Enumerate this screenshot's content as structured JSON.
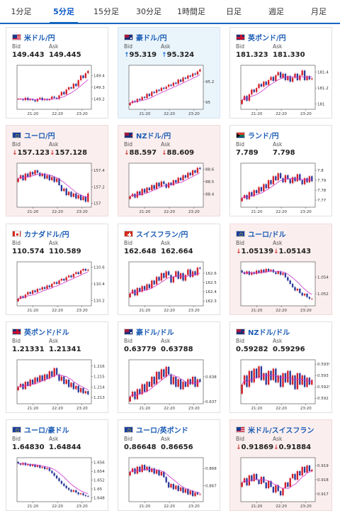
{
  "tabs": [
    "1分足",
    "5分足",
    "15分足",
    "30分足",
    "1時間足",
    "日足",
    "週足",
    "月足"
  ],
  "active_tab": 1,
  "labels": {
    "bid": "Bid",
    "ask": "Ask"
  },
  "colors": {
    "up_candle": "#d4202a",
    "down_candle": "#2b3a9a",
    "ma_line": "#cc33cc",
    "axis": "#333333"
  },
  "cards": [
    {
      "pair": "米ドル/円",
      "bid": "149.443",
      "ask": "149.445",
      "trend": "none",
      "flag": "us-jp",
      "chart_data": {
        "type": "candlestick",
        "x_ticks": [
          "21:20",
          "22:20",
          "23:20"
        ],
        "y_ticks": [
          "149.4",
          "149.3",
          "149.2"
        ],
        "y_range": [
          149.13,
          149.47
        ],
        "closes": [
          149.2,
          149.2,
          149.19,
          149.21,
          149.19,
          149.2,
          149.19,
          149.18,
          149.2,
          149.21,
          149.19,
          149.2,
          149.19,
          149.2,
          149.22,
          149.21,
          149.2,
          149.23,
          149.26,
          149.24,
          149.28,
          149.3,
          149.29,
          149.33,
          149.31,
          149.36,
          149.4,
          149.38,
          149.42,
          149.44
        ]
      }
    },
    {
      "pair": "豪ドル/円",
      "bid": "95.319",
      "ask": "95.324",
      "trend": "up",
      "flag": "au-jp",
      "chart_data": {
        "type": "candlestick",
        "x_ticks": [
          "21:20",
          "22:20",
          "23:20"
        ],
        "y_ticks": [
          "95.2",
          "95"
        ],
        "y_range": [
          94.95,
          95.34
        ],
        "closes": [
          94.99,
          95.01,
          95.0,
          95.03,
          95.02,
          95.05,
          95.04,
          95.08,
          95.06,
          95.1,
          95.09,
          95.12,
          95.11,
          95.14,
          95.13,
          95.15,
          95.17,
          95.16,
          95.19,
          95.18,
          95.22,
          95.2,
          95.24,
          95.23,
          95.26,
          95.25,
          95.28,
          95.27,
          95.3,
          95.32
        ]
      }
    },
    {
      "pair": "英ポンド/円",
      "bid": "181.323",
      "ask": "181.330",
      "trend": "none",
      "flag": "gb-jp",
      "chart_data": {
        "type": "candlestick",
        "x_ticks": [
          "21:20",
          "22:20",
          "23:20"
        ],
        "y_ticks": [
          "181.4",
          "181.2",
          "181"
        ],
        "y_range": [
          180.96,
          181.46
        ],
        "closes": [
          181.05,
          181.1,
          181.04,
          181.12,
          181.18,
          181.15,
          181.2,
          181.25,
          181.22,
          181.28,
          181.24,
          181.3,
          181.34,
          181.29,
          181.36,
          181.4,
          181.33,
          181.38,
          181.3,
          181.35,
          181.28,
          181.33,
          181.38,
          181.3,
          181.36,
          181.42,
          181.3,
          181.35,
          181.31,
          181.32
        ]
      }
    },
    {
      "pair": "ユーロ/円",
      "bid": "157.123",
      "ask": "157.128",
      "trend": "down",
      "flag": "eu-jp",
      "chart_data": {
        "type": "candlestick",
        "x_ticks": [
          "21:20",
          "22:20",
          "23:20"
        ],
        "y_ticks": [
          "157.4",
          "157.2",
          "157"
        ],
        "y_range": [
          156.98,
          157.46
        ],
        "closes": [
          157.3,
          157.34,
          157.28,
          157.36,
          157.32,
          157.38,
          157.35,
          157.4,
          157.37,
          157.33,
          157.36,
          157.3,
          157.34,
          157.28,
          157.32,
          157.26,
          157.3,
          157.22,
          157.15,
          157.18,
          157.1,
          157.14,
          157.08,
          157.12,
          157.06,
          157.1,
          157.04,
          157.08,
          157.02,
          157.12
        ]
      }
    },
    {
      "pair": "NZドル/円",
      "bid": "88.597",
      "ask": "88.609",
      "trend": "down",
      "flag": "nz-jp",
      "chart_data": {
        "type": "candlestick",
        "x_ticks": [
          "21:20",
          "22:20",
          "23:20"
        ],
        "y_ticks": [
          "88.6",
          "88.5",
          "88.4"
        ],
        "y_range": [
          88.31,
          88.63
        ],
        "closes": [
          88.38,
          88.4,
          88.37,
          88.42,
          88.39,
          88.44,
          88.41,
          88.45,
          88.43,
          88.47,
          88.44,
          88.49,
          88.46,
          88.5,
          88.48,
          88.45,
          88.49,
          88.47,
          88.51,
          88.49,
          88.53,
          88.51,
          88.55,
          88.53,
          88.57,
          88.55,
          88.59,
          88.57,
          88.61,
          88.6
        ]
      }
    },
    {
      "pair": "ランド/円",
      "bid": "7.789",
      "ask": "7.798",
      "trend": "none",
      "flag": "za-jp",
      "chart_data": {
        "type": "candlestick",
        "x_ticks": [
          "21:20",
          "22:20",
          "23:20"
        ],
        "y_ticks": [
          "7.8",
          "7.79",
          "7.78",
          "7.77"
        ],
        "y_range": [
          7.765,
          7.805
        ],
        "closes": [
          7.772,
          7.775,
          7.771,
          7.778,
          7.774,
          7.78,
          7.777,
          7.783,
          7.779,
          7.786,
          7.782,
          7.79,
          7.786,
          7.794,
          7.79,
          7.797,
          7.792,
          7.788,
          7.795,
          7.791,
          7.787,
          7.793,
          7.789,
          7.796,
          7.79,
          7.786,
          7.792,
          7.788,
          7.794,
          7.789
        ]
      }
    },
    {
      "pair": "カナダドル/円",
      "bid": "110.574",
      "ask": "110.589",
      "trend": "none",
      "flag": "ca-jp",
      "chart_data": {
        "type": "candlestick",
        "x_ticks": [
          "21:20",
          "22:20",
          "23:20"
        ],
        "y_ticks": [
          "110.6",
          "110.4",
          "110.2"
        ],
        "y_range": [
          110.16,
          110.64
        ],
        "closes": [
          110.22,
          110.25,
          110.23,
          110.27,
          110.3,
          110.28,
          110.32,
          110.3,
          110.34,
          110.33,
          110.36,
          110.34,
          110.38,
          110.36,
          110.4,
          110.42,
          110.4,
          110.44,
          110.46,
          110.44,
          110.48,
          110.5,
          110.48,
          110.52,
          110.54,
          110.52,
          110.56,
          110.58,
          110.56,
          110.57
        ]
      }
    },
    {
      "pair": "スイスフラン/円",
      "bid": "162.648",
      "ask": "162.664",
      "trend": "none",
      "flag": "ch-jp",
      "chart_data": {
        "type": "candlestick",
        "x_ticks": [
          "21:20",
          "22:20",
          "23:20"
        ],
        "y_ticks": [
          "162.6",
          "162.5",
          "162.4",
          "162.3"
        ],
        "y_range": [
          162.27,
          162.7
        ],
        "closes": [
          162.38,
          162.42,
          162.36,
          162.44,
          162.4,
          162.46,
          162.42,
          162.48,
          162.44,
          162.52,
          162.48,
          162.56,
          162.52,
          162.6,
          162.55,
          162.62,
          162.58,
          162.5,
          162.56,
          162.62,
          162.54,
          162.6,
          162.52,
          162.58,
          162.64,
          162.56,
          162.62,
          162.58,
          162.66,
          162.65
        ]
      }
    },
    {
      "pair": "ユーロ/ドル",
      "bid": "1.05139",
      "ask": "1.05143",
      "trend": "down",
      "flag": "eu-us",
      "chart_data": {
        "type": "candlestick",
        "x_ticks": [
          "21:20",
          "22:20",
          "23:20"
        ],
        "y_ticks": [
          "1.054",
          "1.052"
        ],
        "y_range": [
          1.0508,
          1.0556
        ],
        "closes": [
          1.0546,
          1.0544,
          1.0547,
          1.0543,
          1.0546,
          1.0544,
          1.0548,
          1.0545,
          1.0549,
          1.0546,
          1.055,
          1.0547,
          1.0549,
          1.0546,
          1.0544,
          1.0547,
          1.0543,
          1.0545,
          1.054,
          1.0536,
          1.0532,
          1.0528,
          1.0524,
          1.0526,
          1.0521,
          1.0518,
          1.052,
          1.0516,
          1.0514,
          1.0514
        ]
      }
    },
    {
      "pair": "英ポンド/ドル",
      "bid": "1.21331",
      "ask": "1.21341",
      "trend": "none",
      "flag": "gb-us",
      "chart_data": {
        "type": "candlestick",
        "x_ticks": [
          "21:20",
          "22:20",
          "23:20"
        ],
        "y_ticks": [
          "1.216",
          "1.215",
          "1.214",
          "1.213"
        ],
        "y_range": [
          1.2126,
          1.2164
        ],
        "closes": [
          1.214,
          1.2143,
          1.2138,
          1.2145,
          1.2141,
          1.2147,
          1.2143,
          1.2149,
          1.2145,
          1.2151,
          1.2146,
          1.2152,
          1.2148,
          1.2155,
          1.215,
          1.2158,
          1.2152,
          1.2146,
          1.215,
          1.2143,
          1.2147,
          1.214,
          1.2144,
          1.2138,
          1.2141,
          1.2135,
          1.2139,
          1.2134,
          1.2136,
          1.2133
        ]
      }
    },
    {
      "pair": "豪ドル/ドル",
      "bid": "0.63779",
      "ask": "0.63788",
      "trend": "none",
      "flag": "au-us",
      "chart_data": {
        "type": "candlestick",
        "x_ticks": [
          "21:20",
          "22:20",
          "23:20"
        ],
        "y_ticks": [
          "0.638",
          "0.637"
        ],
        "y_range": [
          0.637,
          0.6386
        ],
        "closes": [
          0.6372,
          0.6374,
          0.6371,
          0.6375,
          0.6373,
          0.6377,
          0.6374,
          0.6378,
          0.6376,
          0.638,
          0.6377,
          0.6382,
          0.6379,
          0.6383,
          0.638,
          0.6384,
          0.6381,
          0.6377,
          0.638,
          0.6376,
          0.6379,
          0.6375,
          0.6378,
          0.6376,
          0.6379,
          0.6377,
          0.638,
          0.6376,
          0.6379,
          0.6378
        ]
      }
    },
    {
      "pair": "NZドル/ドル",
      "bid": "0.59282",
      "ask": "0.59296",
      "trend": "none",
      "flag": "nz-us",
      "chart_data": {
        "type": "candlestick",
        "x_ticks": [
          "21:20",
          "22:20",
          "23:20"
        ],
        "y_ticks": [
          "0.5935",
          "0.593",
          "0.5925",
          "0.592"
        ],
        "y_range": [
          0.59185,
          0.5936
        ],
        "closes": [
          0.5926,
          0.593,
          0.5925,
          0.5932,
          0.5927,
          0.5933,
          0.5929,
          0.5934,
          0.5928,
          0.5931,
          0.5926,
          0.5932,
          0.5928,
          0.5933,
          0.5927,
          0.593,
          0.5925,
          0.5931,
          0.5927,
          0.5932,
          0.5926,
          0.593,
          0.5924,
          0.5931,
          0.5926,
          0.593,
          0.5925,
          0.5929,
          0.5926,
          0.5928
        ]
      }
    },
    {
      "pair": "ユーロ/豪ドル",
      "bid": "1.64830",
      "ask": "1.64844",
      "trend": "none",
      "flag": "eu-au",
      "chart_data": {
        "type": "candlestick",
        "x_ticks": [
          "21:20",
          "22:20",
          "23:20"
        ],
        "y_ticks": [
          "1.656",
          "1.654",
          "1.652",
          "1.65",
          "1.648"
        ],
        "y_range": [
          1.6476,
          1.6566
        ],
        "closes": [
          1.6558,
          1.6555,
          1.6559,
          1.6554,
          1.6556,
          1.6552,
          1.6555,
          1.655,
          1.6553,
          1.6548,
          1.655,
          1.6545,
          1.6547,
          1.6541,
          1.6536,
          1.653,
          1.6524,
          1.6518,
          1.6512,
          1.6507,
          1.6502,
          1.6498,
          1.6494,
          1.6497,
          1.6492,
          1.6488,
          1.649,
          1.6486,
          1.6484,
          1.6483
        ]
      }
    },
    {
      "pair": "ユーロ/英ポンド",
      "bid": "0.86648",
      "ask": "0.86656",
      "trend": "none",
      "flag": "eu-gb",
      "chart_data": {
        "type": "candlestick",
        "x_ticks": [
          "21:20",
          "22:20",
          "23:20"
        ],
        "y_ticks": [
          "0.868",
          "0.867"
        ],
        "y_range": [
          0.8662,
          0.8685
        ],
        "closes": [
          0.8678,
          0.868,
          0.8677,
          0.8681,
          0.8678,
          0.8682,
          0.8679,
          0.8681,
          0.8678,
          0.868,
          0.8677,
          0.8679,
          0.8676,
          0.8678,
          0.8675,
          0.8672,
          0.8669,
          0.8671,
          0.8668,
          0.867,
          0.8667,
          0.8669,
          0.8666,
          0.8668,
          0.8665,
          0.8667,
          0.8664,
          0.8666,
          0.8665,
          0.8665
        ]
      }
    },
    {
      "pair": "米ドル/スイスフラン",
      "bid": "0.91869",
      "ask": "0.91884",
      "trend": "down",
      "flag": "us-ch",
      "chart_data": {
        "type": "candlestick",
        "x_ticks": [
          "21:20",
          "22:20",
          "23:20"
        ],
        "y_ticks": [
          "0.919",
          "0.918",
          "0.917"
        ],
        "y_range": [
          0.9166,
          0.9194
        ],
        "closes": [
          0.9178,
          0.9181,
          0.9176,
          0.9183,
          0.9179,
          0.9184,
          0.918,
          0.9177,
          0.9182,
          0.9178,
          0.9174,
          0.9179,
          0.9175,
          0.9171,
          0.9176,
          0.9172,
          0.9169,
          0.9174,
          0.9178,
          0.9175,
          0.9181,
          0.9184,
          0.918,
          0.9186,
          0.9183,
          0.9189,
          0.9185,
          0.919,
          0.9186,
          0.9187
        ]
      }
    }
  ]
}
